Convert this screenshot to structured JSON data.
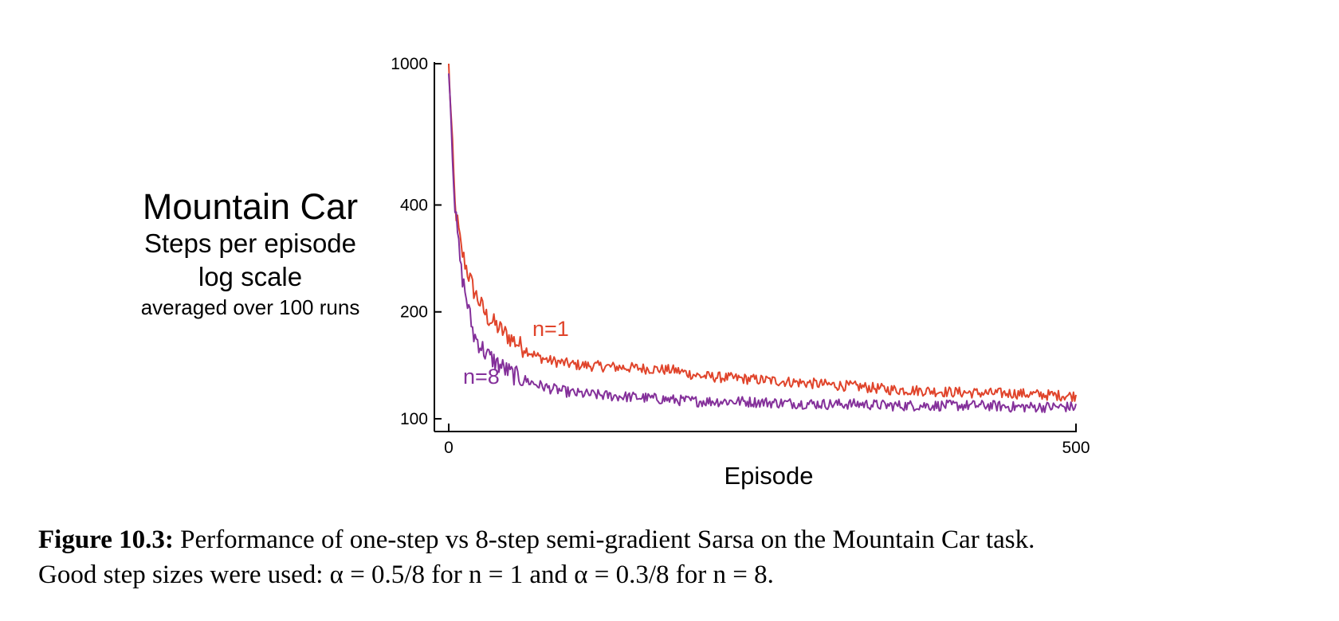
{
  "ylabel": {
    "title": "Mountain Car",
    "line1": "Steps per episode",
    "line2": "log scale",
    "line3": "averaged over 100 runs"
  },
  "chart_data": {
    "type": "line",
    "xlabel": "Episode",
    "xlim": [
      0,
      500
    ],
    "ylim": [
      100,
      1000
    ],
    "yscale": "log",
    "x_ticks": [
      "0",
      "500"
    ],
    "y_ticks": [
      "1000",
      "400",
      "200",
      "100"
    ],
    "grid": false,
    "legend": "inline labels",
    "series": [
      {
        "name": "n=1",
        "color": "#e0442b",
        "x": [
          0,
          5,
          10,
          15,
          20,
          30,
          40,
          50,
          60,
          70,
          80,
          100,
          130,
          150,
          180,
          200,
          230,
          260,
          300,
          330,
          350,
          380,
          400,
          430,
          450,
          470,
          500
        ],
        "y": [
          1000,
          400,
          300,
          260,
          230,
          195,
          180,
          168,
          158,
          150,
          146,
          142,
          140,
          139,
          137,
          132,
          130,
          128,
          125,
          123,
          121,
          120,
          119,
          118,
          118,
          117,
          116
        ]
      },
      {
        "name": "n=8",
        "color": "#84309a",
        "x": [
          0,
          5,
          10,
          15,
          20,
          30,
          40,
          50,
          60,
          70,
          80,
          100,
          130,
          150,
          180,
          200,
          230,
          260,
          300,
          330,
          350,
          380,
          400,
          430,
          450,
          470,
          500
        ],
        "y": [
          1000,
          390,
          260,
          210,
          172,
          152,
          142,
          134,
          129,
          125,
          122,
          118,
          116,
          115,
          113,
          112,
          112,
          111,
          110,
          110,
          109,
          109,
          109,
          109,
          108,
          108,
          108
        ]
      }
    ]
  },
  "caption": {
    "label": "Figure 10.3:",
    "line1_text": "Performance of one-step vs 8-step semi-gradient Sarsa on the Mountain Car task.",
    "line2_text": "Good step sizes were used: α = 0.5/8 for n = 1 and α = 0.3/8 for n = 8."
  }
}
